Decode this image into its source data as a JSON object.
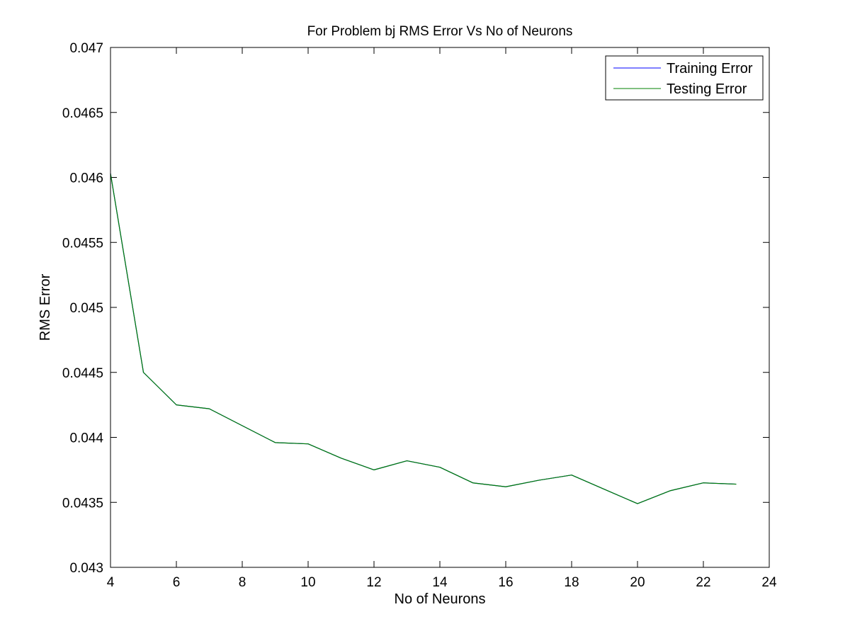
{
  "chart_data": {
    "type": "line",
    "title": "For Problem bj RMS Error Vs No of Neurons",
    "xlabel": "No of Neurons",
    "ylabel": "RMS Error",
    "xlim": [
      4,
      24
    ],
    "ylim": [
      0.043,
      0.047
    ],
    "x_ticks": [
      4,
      6,
      8,
      10,
      12,
      14,
      16,
      18,
      20,
      22,
      24
    ],
    "x_tick_labels": [
      "4",
      "6",
      "8",
      "10",
      "12",
      "14",
      "16",
      "18",
      "20",
      "22",
      "24"
    ],
    "y_ticks": [
      0.043,
      0.0435,
      0.044,
      0.0445,
      0.045,
      0.0455,
      0.046,
      0.0465,
      0.047
    ],
    "y_tick_labels": [
      "0.043",
      "0.0435",
      "0.044",
      "0.0445",
      "0.045",
      "0.0455",
      "0.046",
      "0.0465",
      "0.047"
    ],
    "grid": false,
    "legend_position": "top-right",
    "x": [
      4,
      5,
      6,
      7,
      8,
      9,
      10,
      11,
      12,
      13,
      14,
      15,
      16,
      17,
      18,
      19,
      20,
      21,
      22,
      23
    ],
    "series": [
      {
        "name": "Training Error",
        "color": "#0000ff",
        "values": [
          0.04603,
          0.0445,
          0.04425,
          0.04422,
          0.04409,
          0.04396,
          0.04395,
          0.04384,
          0.04375,
          0.04382,
          0.04377,
          0.04365,
          0.04362,
          0.04367,
          0.04371,
          0.0436,
          0.04349,
          0.04359,
          0.04365,
          0.04364
        ]
      },
      {
        "name": "Testing Error",
        "color": "#008000",
        "values": [
          0.04603,
          0.0445,
          0.04425,
          0.04422,
          0.04409,
          0.04396,
          0.04395,
          0.04384,
          0.04375,
          0.04382,
          0.04377,
          0.04365,
          0.04362,
          0.04367,
          0.04371,
          0.0436,
          0.04349,
          0.04359,
          0.04365,
          0.04364
        ]
      }
    ]
  }
}
